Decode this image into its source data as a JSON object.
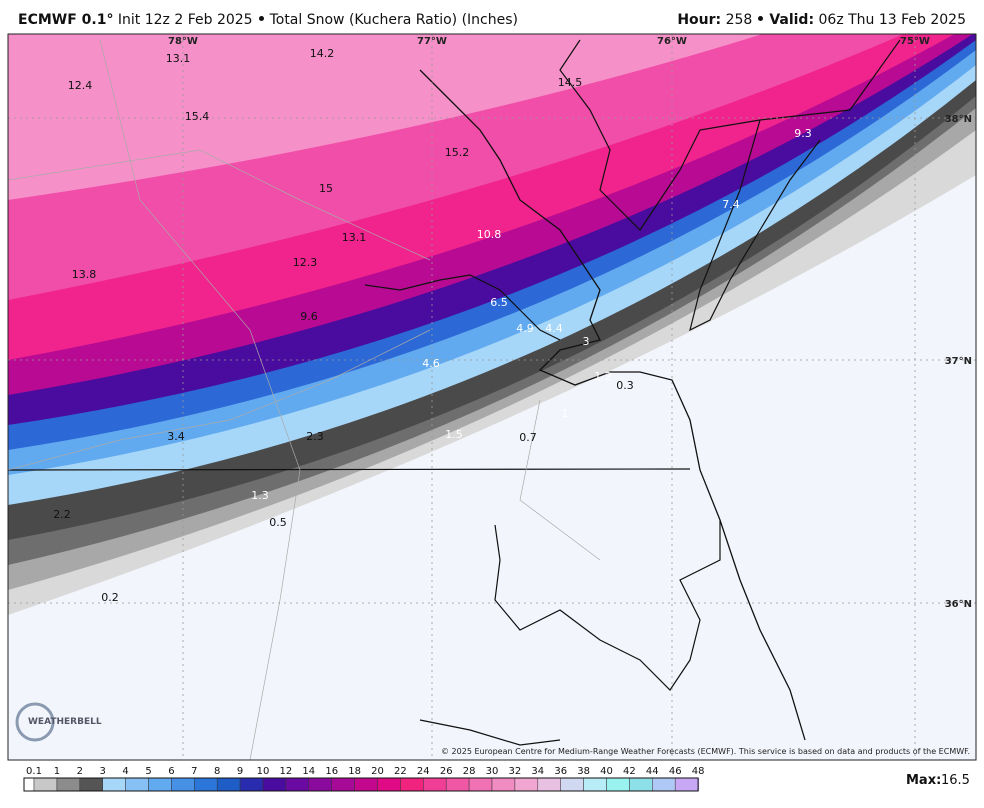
{
  "header": {
    "model": "ECMWF 0.1°",
    "init": "Init 12z 2 Feb 2025",
    "product": "Total Snow (Kuchera Ratio) (Inches)",
    "hour_label": "Hour:",
    "hour": 258,
    "valid_label": "Valid:",
    "valid": "06z Thu 13 Feb 2025"
  },
  "map": {
    "longitudes": [
      "78°W",
      "77°W",
      "76°W",
      "75°W"
    ],
    "latitudes": [
      "38°N",
      "37°N",
      "36°N"
    ],
    "labels": [
      13.1,
      14.2,
      12.4,
      14.5,
      15.4,
      15.2,
      9.3,
      15.0,
      7.4,
      13.1,
      10.8,
      12.3,
      13.8,
      6.5,
      9.6,
      4.9,
      4.4,
      3.0,
      4.6,
      1.2,
      0.3,
      1.0,
      3.4,
      2.3,
      1.5,
      0.7,
      1.3,
      0.5,
      2.2,
      0.2
    ],
    "logo": "WEATHERBELL",
    "copyright": "© 2025 European Centre for Medium-Range Weather Forecasts (ECMWF). This service is based on data and products of the ECMWF."
  },
  "colorbar": {
    "labels": [
      0.1,
      1,
      2,
      3,
      4,
      5,
      6,
      7,
      8,
      9,
      10,
      12,
      14,
      16,
      18,
      20,
      22,
      24,
      26,
      28,
      30,
      32,
      34,
      36,
      38,
      40,
      42,
      44,
      46,
      48
    ]
  },
  "footer": {
    "max_label": "Max:",
    "max": 16.5
  }
}
